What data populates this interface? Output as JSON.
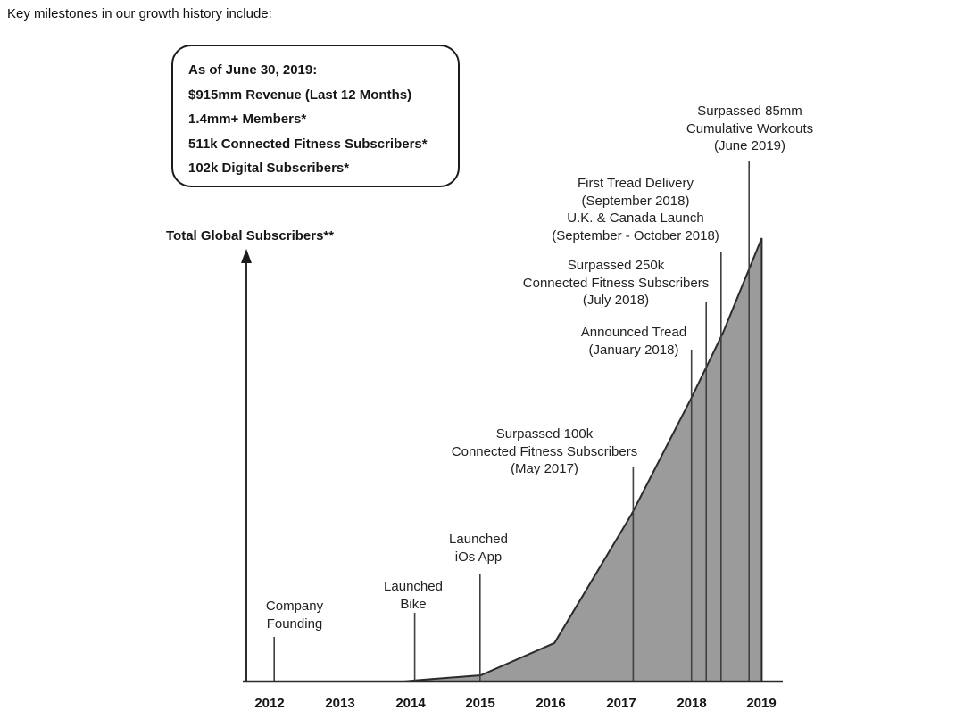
{
  "page": {
    "header": "Key milestones in our growth history include:"
  },
  "stats_box": {
    "lines": [
      "As of June 30, 2019:",
      "$915mm Revenue (Last 12 Months)",
      "1.4mm+ Members*",
      "511k Connected Fitness Subscribers*",
      "102k Digital Subscribers*"
    ]
  },
  "chart_data": {
    "type": "area",
    "title": "",
    "xlabel": "",
    "ylabel": "Total Global Subscribers**",
    "x_ticks": [
      "2012",
      "2013",
      "2014",
      "2015",
      "2016",
      "2017",
      "2018",
      "2019"
    ],
    "x_range": [
      2012,
      2019
    ],
    "y_axis_numeric_scale": false,
    "grid": false,
    "legend": "none",
    "area_color": "#9b9b9b",
    "edge_color": "#2b2b2b",
    "series": [
      {
        "name": "Total Global Subscribers",
        "note": "y-axis has no numeric scale; values are relative height percent of peak (June 2019 = 100)",
        "points": [
          [
            2012.0,
            0
          ],
          [
            2013.0,
            0
          ],
          [
            2013.9,
            0
          ],
          [
            2014.1,
            0.3
          ],
          [
            2015.0,
            1.4
          ],
          [
            2016.05,
            8.7
          ],
          [
            2017.15,
            37.8
          ],
          [
            2018.0,
            64.0
          ],
          [
            2018.45,
            78.7
          ],
          [
            2019.0,
            100
          ]
        ]
      }
    ],
    "milestones": [
      {
        "lines": [
          "Company",
          "Founding"
        ],
        "x_year": 2012.06
      },
      {
        "lines": [
          "Launched",
          "Bike"
        ],
        "x_year": 2014.06
      },
      {
        "lines": [
          "Launched",
          "iOs App"
        ],
        "x_year": 2014.99
      },
      {
        "lines": [
          "Surpassed 100k",
          "Connected Fitness Subscribers",
          "(May 2017)"
        ],
        "x_year": 2017.17
      },
      {
        "lines": [
          "Announced Tread",
          "(January 2018)"
        ],
        "x_year": 2018.0
      },
      {
        "lines": [
          "Surpassed 250k",
          "Connected Fitness Subscribers",
          "(July 2018)"
        ],
        "x_year": 2018.21
      },
      {
        "lines": [
          "First Tread Delivery",
          "(September 2018)",
          "U.K. & Canada Launch",
          "(September - October 2018)"
        ],
        "x_year": 2018.42
      },
      {
        "lines": [
          "Surpassed 85mm",
          "Cumulative Workouts",
          "(June 2019)"
        ],
        "x_year": 2018.82
      }
    ]
  }
}
